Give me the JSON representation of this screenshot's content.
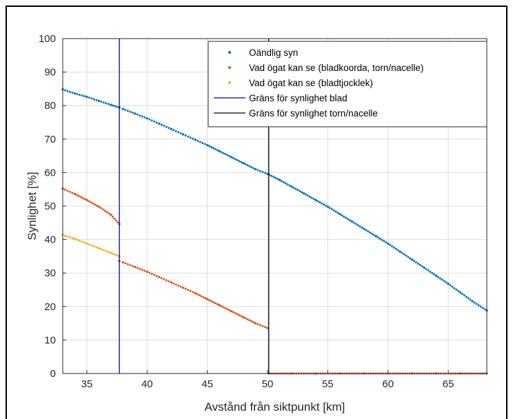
{
  "chart_data": {
    "type": "scatter",
    "xlabel": "Avstånd från siktpunkt [km]",
    "ylabel": "Synlighet [%]",
    "xlim": [
      33,
      68.2
    ],
    "ylim": [
      0,
      100
    ],
    "x_ticks": [
      35,
      40,
      45,
      50,
      55,
      60,
      65
    ],
    "y_ticks": [
      0,
      10,
      20,
      30,
      40,
      50,
      60,
      70,
      80,
      90,
      100
    ],
    "grid": true,
    "legend_position": "top-right",
    "series": [
      {
        "name": "Oändlig syn",
        "kind": "markers",
        "color": "#0072BD",
        "points": [
          [
            33,
            84.8
          ],
          [
            34,
            83.6
          ],
          [
            35,
            82.6
          ],
          [
            36,
            81.4
          ],
          [
            37,
            80.2
          ],
          [
            37.7,
            79.4
          ],
          [
            38,
            79.0
          ],
          [
            39,
            77.6
          ],
          [
            40,
            76.2
          ],
          [
            41,
            74.6
          ],
          [
            42,
            73.0
          ],
          [
            43,
            71.4
          ],
          [
            44,
            69.8
          ],
          [
            45,
            68.2
          ],
          [
            46,
            66.4
          ],
          [
            47,
            64.6
          ],
          [
            48,
            62.8
          ],
          [
            49,
            61.0
          ],
          [
            50,
            59.6
          ],
          [
            51,
            57.8
          ],
          [
            52,
            55.8
          ],
          [
            53,
            53.8
          ],
          [
            54,
            51.8
          ],
          [
            55,
            49.8
          ],
          [
            56,
            47.6
          ],
          [
            57,
            45.4
          ],
          [
            58,
            43.2
          ],
          [
            59,
            41.0
          ],
          [
            60,
            38.8
          ],
          [
            61,
            36.4
          ],
          [
            62,
            34.0
          ],
          [
            63,
            31.6
          ],
          [
            64,
            29.2
          ],
          [
            65,
            26.8
          ],
          [
            66,
            24.2
          ],
          [
            67,
            21.6
          ],
          [
            68.2,
            18.8
          ]
        ]
      },
      {
        "name": "Vad ögat kan se (bladkoorda, torn/nacelle)",
        "kind": "markers",
        "color": "#D95319",
        "points": [
          [
            33,
            55.2
          ],
          [
            34,
            53.6
          ],
          [
            35,
            51.8
          ],
          [
            36,
            49.8
          ],
          [
            37,
            47.4
          ],
          [
            37.7,
            44.6
          ],
          [
            37.7,
            33.6
          ],
          [
            38,
            33.2
          ],
          [
            39,
            31.8
          ],
          [
            40,
            30.4
          ],
          [
            41,
            28.8
          ],
          [
            42,
            27.2
          ],
          [
            43,
            25.6
          ],
          [
            44,
            24.0
          ],
          [
            45,
            22.2
          ],
          [
            46,
            20.4
          ],
          [
            47,
            18.6
          ],
          [
            48,
            16.8
          ],
          [
            49,
            15.0
          ],
          [
            50,
            13.6
          ],
          [
            50.1,
            0
          ],
          [
            52,
            0
          ],
          [
            54,
            0
          ],
          [
            56,
            0
          ],
          [
            58,
            0
          ],
          [
            60,
            0
          ],
          [
            62,
            0
          ],
          [
            64,
            0
          ],
          [
            66,
            0
          ],
          [
            68.2,
            0
          ]
        ]
      },
      {
        "name": "Vad ögat kan se (bladtjocklek)",
        "kind": "markers",
        "color": "#EDB120",
        "points": [
          [
            33,
            41.4
          ],
          [
            34,
            40.2
          ],
          [
            35,
            38.8
          ],
          [
            36,
            37.4
          ],
          [
            37,
            36.0
          ],
          [
            37.7,
            35.0
          ]
        ]
      },
      {
        "name": "Gräns för synlighet blad",
        "kind": "vline",
        "color": "#0000A0",
        "x": 37.7
      },
      {
        "name": "Gräns för synlighet torn/nacelle",
        "kind": "vline",
        "color": "#000000",
        "x": 50.1
      }
    ]
  }
}
